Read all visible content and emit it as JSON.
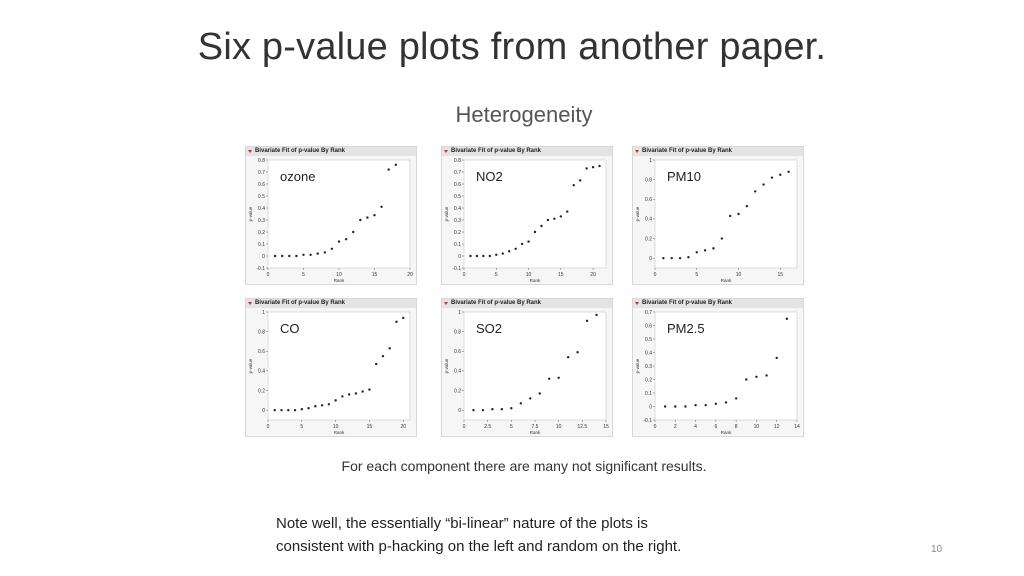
{
  "slide": {
    "title": "Six p-value plots from another paper.",
    "note_lines": [
      "Note well, the essentially “bi-linear” nature of the plots is",
      "consistent with p-hacking on the left and random on the right."
    ],
    "page_number": "10"
  },
  "figure": {
    "heading": "Heterogeneity",
    "caption": "For each component there are many not significant results."
  },
  "chart_data": [
    {
      "type": "scatter",
      "panel_header": "Bivariate Fit of p-value By Rank",
      "label": "ozone",
      "xlabel": "Rank",
      "ylabel": "p-value",
      "xlim": [
        0,
        20
      ],
      "ylim": [
        -0.1,
        0.8
      ],
      "xticks": [
        0,
        5,
        10,
        15,
        20
      ],
      "yticks": [
        -0.1,
        0,
        0.1,
        0.2,
        0.3,
        0.4,
        0.5,
        0.6,
        0.7,
        0.8
      ],
      "x": [
        1,
        2,
        3,
        4,
        5,
        6,
        7,
        8,
        9,
        10,
        11,
        12,
        13,
        14,
        15,
        16,
        17,
        18
      ],
      "y": [
        0.0,
        0.0,
        0.0,
        0.0,
        0.01,
        0.01,
        0.02,
        0.03,
        0.06,
        0.12,
        0.14,
        0.2,
        0.3,
        0.32,
        0.34,
        0.41,
        0.72,
        0.76
      ]
    },
    {
      "type": "scatter",
      "panel_header": "Bivariate Fit of p-value By Rank",
      "label": "NO2",
      "xlabel": "Rank",
      "ylabel": "p-value",
      "xlim": [
        0,
        22
      ],
      "ylim": [
        -0.1,
        0.8
      ],
      "xticks": [
        0,
        5,
        10,
        15,
        20
      ],
      "yticks": [
        -0.1,
        0,
        0.1,
        0.2,
        0.3,
        0.4,
        0.5,
        0.6,
        0.7,
        0.8
      ],
      "x": [
        1,
        2,
        3,
        4,
        5,
        6,
        7,
        8,
        9,
        10,
        11,
        12,
        13,
        14,
        15,
        16,
        17,
        18,
        19,
        20,
        21
      ],
      "y": [
        0.0,
        0.0,
        0.0,
        0.0,
        0.01,
        0.02,
        0.04,
        0.06,
        0.1,
        0.12,
        0.2,
        0.25,
        0.3,
        0.31,
        0.33,
        0.37,
        0.59,
        0.63,
        0.73,
        0.74,
        0.75
      ]
    },
    {
      "type": "scatter",
      "panel_header": "Bivariate Fit of p-value By Rank",
      "label": "PM10",
      "xlabel": "Rank",
      "ylabel": "p-value",
      "xlim": [
        0,
        17
      ],
      "ylim": [
        -0.1,
        1.0
      ],
      "xticks": [
        0,
        5,
        10,
        15
      ],
      "yticks": [
        0,
        0.2,
        0.4,
        0.6,
        0.8,
        1
      ],
      "x": [
        1,
        2,
        3,
        4,
        5,
        6,
        7,
        8,
        9,
        10,
        11,
        12,
        13,
        14,
        15,
        16
      ],
      "y": [
        0.0,
        0.0,
        0.0,
        0.01,
        0.06,
        0.08,
        0.1,
        0.2,
        0.43,
        0.45,
        0.53,
        0.68,
        0.75,
        0.82,
        0.85,
        0.88
      ]
    },
    {
      "type": "scatter",
      "panel_header": "Bivariate Fit of p-value By Rank",
      "label": "CO",
      "xlabel": "Rank",
      "ylabel": "p-value",
      "xlim": [
        0,
        21
      ],
      "ylim": [
        -0.1,
        1.0
      ],
      "xticks": [
        0,
        5,
        10,
        15,
        20
      ],
      "yticks": [
        0,
        0.2,
        0.4,
        0.6,
        0.8,
        1
      ],
      "x": [
        1,
        2,
        3,
        4,
        5,
        6,
        7,
        8,
        9,
        10,
        11,
        12,
        13,
        14,
        15,
        16,
        17,
        18,
        19,
        20
      ],
      "y": [
        0.0,
        0.0,
        0.0,
        0.0,
        0.01,
        0.02,
        0.04,
        0.05,
        0.06,
        0.1,
        0.14,
        0.16,
        0.17,
        0.19,
        0.21,
        0.47,
        0.55,
        0.63,
        0.9,
        0.94
      ]
    },
    {
      "type": "scatter",
      "panel_header": "Bivariate Fit of p-value By Rank",
      "label": "SO2",
      "xlabel": "Rank",
      "ylabel": "p-value",
      "xlim": [
        0,
        15
      ],
      "ylim": [
        -0.1,
        1.0
      ],
      "xticks": [
        0,
        2.5,
        5,
        7.5,
        10,
        12.5,
        15
      ],
      "yticks": [
        0,
        0.2,
        0.4,
        0.6,
        0.8,
        1
      ],
      "x": [
        1,
        2,
        3,
        4,
        5,
        6,
        7,
        8,
        9,
        10,
        11,
        12,
        13,
        14
      ],
      "y": [
        0.0,
        0.0,
        0.01,
        0.01,
        0.02,
        0.07,
        0.12,
        0.17,
        0.32,
        0.33,
        0.54,
        0.59,
        0.91,
        0.97
      ]
    },
    {
      "type": "scatter",
      "panel_header": "Bivariate Fit of p-value By Rank",
      "label": "PM2.5",
      "xlabel": "Rank",
      "ylabel": "p-value",
      "xlim": [
        0,
        14
      ],
      "ylim": [
        -0.1,
        0.7
      ],
      "xticks": [
        0,
        2,
        4,
        6,
        8,
        10,
        12,
        14
      ],
      "yticks": [
        -0.1,
        0,
        0.1,
        0.2,
        0.3,
        0.4,
        0.5,
        0.6,
        0.7
      ],
      "x": [
        1,
        2,
        3,
        4,
        5,
        6,
        7,
        8,
        9,
        10,
        11,
        12,
        13
      ],
      "y": [
        0.0,
        0.0,
        0.0,
        0.01,
        0.01,
        0.02,
        0.03,
        0.06,
        0.2,
        0.22,
        0.23,
        0.36,
        0.65
      ]
    }
  ]
}
